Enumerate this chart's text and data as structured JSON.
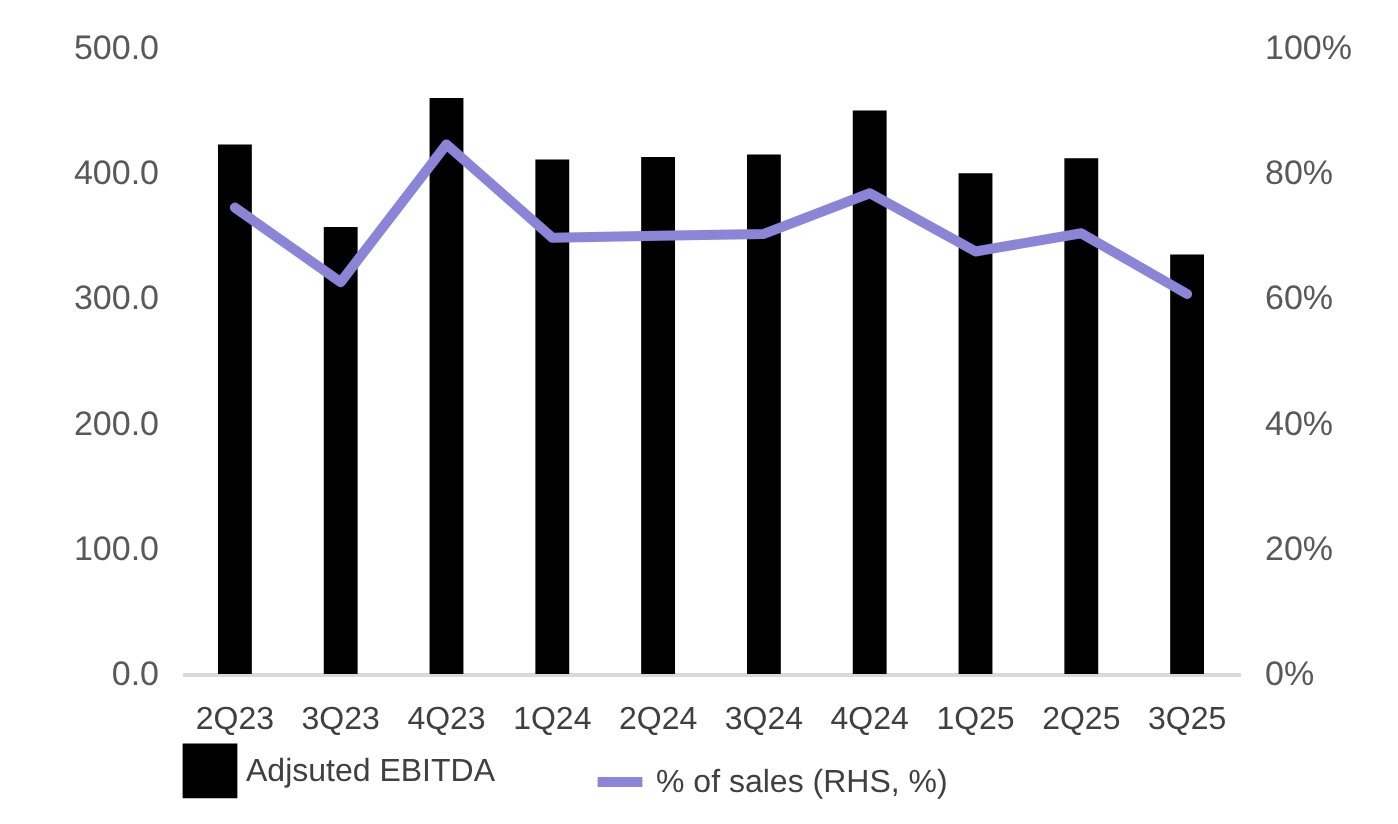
{
  "chart_data": {
    "type": "bar",
    "categories": [
      "2Q23",
      "3Q23",
      "4Q23",
      "1Q24",
      "2Q24",
      "3Q24",
      "4Q24",
      "1Q25",
      "2Q25",
      "3Q25"
    ],
    "series": [
      {
        "name": "Adjsuted EBITDA",
        "color": "#000000",
        "values": [
          423,
          357,
          460,
          411,
          413,
          415,
          450,
          400,
          412,
          335
        ]
      },
      {
        "name": "% of sales (RHS, %)",
        "type": "line",
        "axis": "y2",
        "color": "#8b84d7",
        "values": [
          74.5,
          62.6,
          84.6,
          69.7,
          70.0,
          70.3,
          76.8,
          67.5,
          70.4,
          60.7
        ]
      }
    ],
    "ylim": [
      0,
      500
    ],
    "yticks": [
      {
        "value": 0,
        "label": "0.0"
      },
      {
        "value": 100,
        "label": "100.0"
      },
      {
        "value": 200,
        "label": "200.0"
      },
      {
        "value": 300,
        "label": "300.0"
      },
      {
        "value": 400,
        "label": "400.0"
      },
      {
        "value": 500,
        "label": "500.0"
      }
    ],
    "y2lim": [
      0,
      100
    ],
    "y2ticks": [
      {
        "value": 0,
        "label": "0%"
      },
      {
        "value": 20,
        "label": "20%"
      },
      {
        "value": 40,
        "label": "40%"
      },
      {
        "value": 60,
        "label": "60%"
      },
      {
        "value": 80,
        "label": "80%"
      },
      {
        "value": 100,
        "label": "100%"
      }
    ],
    "grid": false,
    "legend": "bottom"
  }
}
